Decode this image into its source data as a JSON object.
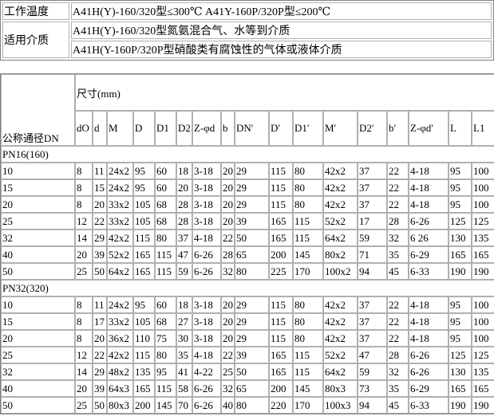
{
  "info": {
    "temp_label": "工作温度",
    "temp_value": "A41H(Y)-160/320型≤300℃ A41Y-160P/320P型≤200℃",
    "media_label": "适用介质",
    "media_values": [
      "A41H(Y)-160/320型氮氨混合气、水等到介质",
      "A41H(Y-160P/320P型硝酸类有腐蚀性的气体或液体介质"
    ]
  },
  "dims": {
    "dn_header": "公称通径DN",
    "size_header": "尺寸(mm)",
    "columns": [
      "dO",
      "d",
      "M",
      "D",
      "D1",
      "D2",
      "Z-φd",
      "b",
      "DN′",
      "D′",
      "D1′",
      "M′",
      "D2′",
      "b′",
      "Z-φd′",
      "L",
      "L1"
    ],
    "groups": [
      {
        "label": "PN16(160)",
        "rows": [
          [
            "10",
            "8",
            "11",
            "24x2",
            "95",
            "60",
            "18",
            "3-18",
            "20",
            "29",
            "115",
            "80",
            "42x2",
            "37",
            "22",
            "4-18",
            "95",
            "100"
          ],
          [
            "15",
            "8",
            "15",
            "24x2",
            "95",
            "60",
            "20",
            "3-18",
            "20",
            "29",
            "115",
            "80",
            "42x2",
            "37",
            "22",
            "4-18",
            "95",
            "100"
          ],
          [
            "20",
            "8",
            "20",
            "33x2",
            "105",
            "68",
            "28",
            "3-18",
            "20",
            "29",
            "115",
            "80",
            "42x2",
            "37",
            "22",
            "4-18",
            "95",
            "100"
          ],
          [
            "25",
            "12",
            "22",
            "33x2",
            "105",
            "68",
            "28",
            "3-18",
            "20",
            "39",
            "165",
            "115",
            "52x2",
            "17",
            "28",
            "6-26",
            "125",
            "125"
          ],
          [
            "32",
            "14",
            "29",
            "42x2",
            "115",
            "80",
            "37",
            "4-18",
            "22",
            "50",
            "165",
            "115",
            "64x2",
            "59",
            "32",
            "6 26",
            "130",
            "135"
          ],
          [
            "40",
            "20",
            "39",
            "52x2",
            "165",
            "115",
            "47",
            "6-26",
            "28",
            "65",
            "200",
            "145",
            "80x2",
            "71",
            "35",
            "6-29",
            "165",
            "165"
          ],
          [
            "50",
            "25",
            "50",
            "64x2",
            "165",
            "115",
            "59",
            "6-26",
            "32",
            "80",
            "225",
            "170",
            "100x2",
            "94",
            "45",
            "6-33",
            "190",
            "190"
          ]
        ]
      },
      {
        "label": "PN32(320)",
        "rows": [
          [
            "10",
            "8",
            "11",
            "24x2",
            "95",
            "60",
            "18",
            "3-18",
            "20",
            "29",
            "115",
            "80",
            "42x2",
            "37",
            "22",
            "4-18",
            "95",
            "100"
          ],
          [
            "15",
            "8",
            "17",
            "33x2",
            "105",
            "68",
            "27",
            "3-18",
            "20",
            "29",
            "115",
            "80",
            "42x2",
            "37",
            "22",
            "4-18",
            "95",
            "100"
          ],
          [
            "20",
            "8",
            "20",
            "36x2",
            "110",
            "75",
            "30",
            "3-18",
            "20",
            "29",
            "115",
            "80",
            "42x2",
            "37",
            "22",
            "4-18",
            "95",
            "100"
          ],
          [
            "25",
            "12",
            "22",
            "42x2",
            "115",
            "80",
            "35",
            "4-18",
            "22",
            "39",
            "165",
            "115",
            "52x2",
            "47",
            "28",
            "6-26",
            "125",
            "125"
          ],
          [
            "32",
            "14",
            "29",
            "48x2",
            "135",
            "95",
            "41",
            "4-22",
            "25",
            "50",
            "165",
            "115",
            "64x2",
            "59",
            "32",
            "6-26",
            "130",
            "135"
          ],
          [
            "40",
            "20",
            "39",
            "64x3",
            "165",
            "115",
            "58",
            "6-26",
            "32",
            "65",
            "200",
            "145",
            "80x3",
            "73",
            "35",
            "6-29",
            "165",
            "165"
          ],
          [
            "50",
            "25",
            "50",
            "80x3",
            "200",
            "145",
            "70",
            "6-26",
            "40",
            "80",
            "220",
            "170",
            "100x3",
            "94",
            "45",
            "6-33",
            "190",
            "190"
          ]
        ]
      }
    ]
  }
}
